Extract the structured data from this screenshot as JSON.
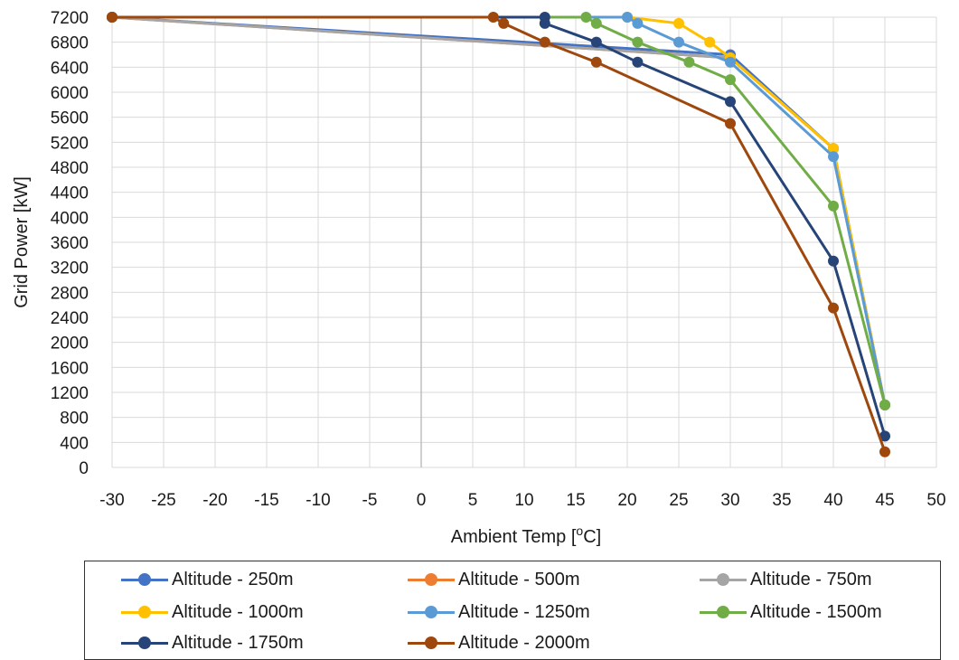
{
  "chart_data": {
    "type": "line",
    "xlabel": "Ambient Temp [°C]",
    "xlabel_pre": "Ambient Temp [",
    "xlabel_sup": "o",
    "xlabel_post": "C]",
    "ylabel": "Grid Power [kW]",
    "xlim": [
      -30,
      50
    ],
    "ylim": [
      0,
      7200
    ],
    "x_ticks": [
      -30,
      -25,
      -20,
      -15,
      -10,
      -5,
      0,
      5,
      10,
      15,
      20,
      25,
      30,
      35,
      40,
      45,
      50
    ],
    "y_ticks": [
      0,
      400,
      800,
      1200,
      1600,
      2000,
      2400,
      2800,
      3200,
      3600,
      4000,
      4400,
      4800,
      5200,
      5600,
      6000,
      6400,
      6800,
      7200
    ],
    "grid": true,
    "legend_position": "bottom",
    "series": [
      {
        "name": "Altitude - 250m",
        "color": "#4472c4",
        "points": [
          [
            -30,
            7200
          ],
          [
            30,
            6600
          ],
          [
            40,
            5100
          ],
          [
            45,
            1000
          ]
        ]
      },
      {
        "name": "Altitude - 500m",
        "color": "#ed7d31",
        "points": [
          [
            -30,
            7200
          ],
          [
            30,
            6550
          ],
          [
            40,
            5100
          ],
          [
            45,
            1000
          ]
        ]
      },
      {
        "name": "Altitude - 750m",
        "color": "#a5a5a5",
        "points": [
          [
            -30,
            7200
          ],
          [
            30,
            6550
          ],
          [
            40,
            5100
          ],
          [
            45,
            1000
          ]
        ]
      },
      {
        "name": "Altitude - 1000m",
        "color": "#ffc000",
        "points": [
          [
            -30,
            7200
          ],
          [
            20,
            7200
          ],
          [
            25,
            7100
          ],
          [
            28,
            6800
          ],
          [
            30,
            6550
          ],
          [
            40,
            5100
          ],
          [
            45,
            1000
          ]
        ]
      },
      {
        "name": "Altitude - 1250m",
        "color": "#5b9bd5",
        "points": [
          [
            -30,
            7200
          ],
          [
            20,
            7200
          ],
          [
            21,
            7100
          ],
          [
            25,
            6800
          ],
          [
            30,
            6480
          ],
          [
            40,
            4970
          ],
          [
            45,
            1000
          ]
        ]
      },
      {
        "name": "Altitude - 1500m",
        "color": "#70ad47",
        "points": [
          [
            -30,
            7200
          ],
          [
            16,
            7200
          ],
          [
            17,
            7100
          ],
          [
            21,
            6800
          ],
          [
            26,
            6480
          ],
          [
            30,
            6200
          ],
          [
            40,
            4180
          ],
          [
            45,
            1000
          ]
        ]
      },
      {
        "name": "Altitude - 1750m",
        "color": "#264478",
        "points": [
          [
            -30,
            7200
          ],
          [
            12,
            7200
          ],
          [
            12,
            7100
          ],
          [
            17,
            6800
          ],
          [
            21,
            6480
          ],
          [
            30,
            5850
          ],
          [
            40,
            3300
          ],
          [
            45,
            500
          ]
        ]
      },
      {
        "name": "Altitude - 2000m",
        "color": "#9e480e",
        "points": [
          [
            -30,
            7200
          ],
          [
            7,
            7200
          ],
          [
            8,
            7100
          ],
          [
            12,
            6800
          ],
          [
            17,
            6480
          ],
          [
            30,
            5500
          ],
          [
            40,
            2550
          ],
          [
            45,
            250
          ]
        ]
      }
    ]
  }
}
